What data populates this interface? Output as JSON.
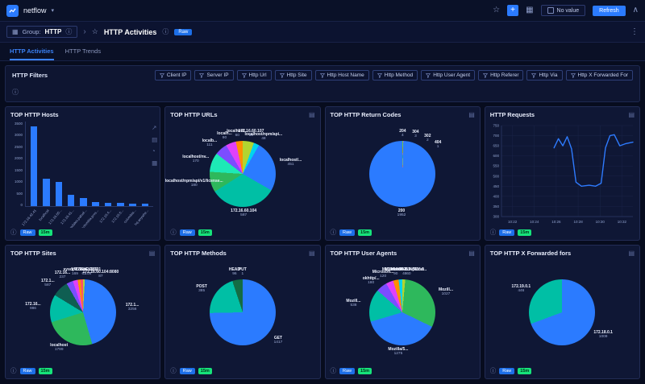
{
  "topbar": {
    "app_name": "netflow",
    "no_value_label": "No value",
    "refresh_label": "Refresh"
  },
  "header": {
    "group_label": "Group:",
    "group_value": "HTTP",
    "title": "HTTP Activities",
    "raw_badge": "Raw"
  },
  "tabs": [
    {
      "label": "HTTP Activities",
      "active": true
    },
    {
      "label": "HTTP Trends",
      "active": false
    }
  ],
  "filters": {
    "title": "HTTP Filters",
    "chips": [
      "Client IP",
      "Server IP",
      "Http Url",
      "Http Site",
      "Http Host Name",
      "Http Method",
      "Http User Agent",
      "Http Referer",
      "Http Via",
      "Http X Forwarded For"
    ]
  },
  "card_footer": {
    "raw": "Raw",
    "window": "15m"
  },
  "icons": {
    "caret_down": "▾",
    "star": "☆",
    "plus": "+",
    "apps": "▦",
    "kebab": "⋮",
    "info": "ⓘ",
    "collapse": "∧",
    "crumb": "›",
    "maximize": "↗",
    "table": "▤",
    "pie": "◔",
    "grid": "▦",
    "menu": "▤"
  },
  "colors": {
    "accent_blue": "#2b7bff",
    "raw_badge": "#1d6fe8",
    "window_badge": "#16e37a"
  },
  "cards": [
    {
      "title": "TOP HTTP Hosts",
      "chart_data": {
        "type": "bar",
        "categories": [
          "172.16.42.41",
          "localhost",
          "172.16.60...",
          "172.16.41...",
          "updates.paloal...",
          "colombia.pros...",
          "172.16.4...",
          "172.16.6...",
          "colombia...",
          "hq.anywhe..."
        ],
        "values": [
          3300,
          1150,
          1000,
          470,
          330,
          170,
          150,
          120,
          100,
          90
        ],
        "ylim": [
          0,
          3500
        ],
        "y_step": 500,
        "bar_color": "#2b7bff"
      }
    },
    {
      "title": "TOP HTTP URLs",
      "chart_data": {
        "type": "pie",
        "slices": [
          {
            "label": "172.16.60.107",
            "value": 99,
            "color": "#b2d430"
          },
          {
            "label": "localhost/npm/api...",
            "value": 48,
            "color": "#00d3ee"
          },
          {
            "label": "localhost/...",
            "value": 451,
            "color": "#2b7bff"
          },
          {
            "label": "172.16.60.104",
            "value": 587,
            "color": "#00bfa5"
          },
          {
            "label": "localhost/npm/api/v1/license...",
            "value": 180,
            "color": "#2eb85c"
          },
          {
            "label": "localhost/nv...",
            "value": 170,
            "color": "#1de9b6"
          },
          {
            "label": "localb...",
            "value": 111,
            "color": "#7c4dff"
          },
          {
            "label": "localh...",
            "value": 90,
            "color": "#e040fb"
          },
          {
            "label": "localhost...",
            "value": 60,
            "color": "#ff8f00"
          }
        ]
      }
    },
    {
      "title": "TOP HTTP Return Codes",
      "chart_data": {
        "type": "pie",
        "slices": [
          {
            "label": "204",
            "value": 4,
            "color": "#2eb85c"
          },
          {
            "label": "304",
            "value": 3,
            "color": "#b2d430"
          },
          {
            "label": "302",
            "value": 2,
            "color": "#ff8f00"
          },
          {
            "label": "404",
            "value": 1,
            "color": "#e040fb"
          },
          {
            "label": "200",
            "value": 1952,
            "color": "#2b7bff"
          }
        ]
      }
    },
    {
      "title": "HTTP Requests",
      "chart_data": {
        "type": "line",
        "x_ticks": [
          "10:22",
          "10:24",
          "10:26",
          "10:28",
          "10:30",
          "10:32"
        ],
        "x_tick_minutes": [
          22,
          24,
          26,
          28,
          30,
          32
        ],
        "x_min": 21,
        "x_max": 33,
        "ylim": [
          300,
          750
        ],
        "y_step": 50,
        "line_color": "#2e7bff",
        "points": [
          [
            25.8,
            640
          ],
          [
            26.2,
            685
          ],
          [
            26.6,
            650
          ],
          [
            27.0,
            695
          ],
          [
            27.4,
            635
          ],
          [
            27.8,
            470
          ],
          [
            28.3,
            450
          ],
          [
            29.0,
            455
          ],
          [
            29.6,
            450
          ],
          [
            30.1,
            465
          ],
          [
            30.5,
            640
          ],
          [
            30.9,
            700
          ],
          [
            31.3,
            705
          ],
          [
            31.8,
            650
          ],
          [
            32.3,
            660
          ],
          [
            33.0,
            668
          ]
        ]
      }
    },
    {
      "title": "TOP HTTP Sites",
      "chart_data": {
        "type": "pie",
        "slices": [
          {
            "label": "172.16.42.185",
            "value": 62,
            "color": "#b2d430"
          },
          {
            "label": "172.1...",
            "value": 3256,
            "color": "#2b7bff"
          },
          {
            "label": "localhost",
            "value": 1799,
            "color": "#2eb85c"
          },
          {
            "label": "172.16...",
            "value": 986,
            "color": "#00bfa5"
          },
          {
            "label": "172.1...",
            "value": 587,
            "color": "#0f5e52"
          },
          {
            "label": "172.16...",
            "value": 237,
            "color": "#7c4dff"
          },
          {
            "label": "sysope.com",
            "value": 169,
            "color": "#e040fb"
          },
          {
            "label": "172.16.41.191",
            "value": 108,
            "color": "#ff8f00"
          },
          {
            "label": "172.16.60.104:8080",
            "value": 87,
            "color": "#ff4d6b"
          }
        ]
      }
    },
    {
      "title": "TOP HTTP Methods",
      "chart_data": {
        "type": "pie",
        "slices": [
          {
            "label": "PUT",
            "value": 1,
            "color": "#e040fb"
          },
          {
            "label": "GET",
            "value": 1417,
            "color": "#2b7bff"
          },
          {
            "label": "POST",
            "value": 385,
            "color": "#00bfa5"
          },
          {
            "label": "HEAD",
            "value": 96,
            "color": "#146c43"
          }
        ]
      }
    },
    {
      "title": "TOP HTTP User Agents",
      "chart_data": {
        "type": "pie",
        "slices": [
          {
            "label": "Microsoft-WINS/10.0",
            "value": 48,
            "color": "#b2d430"
          },
          {
            "label": "Mozill...",
            "value": 1027,
            "color": "#2eb85c"
          },
          {
            "label": "Mozilla/5...",
            "value": 1275,
            "color": "#2b7bff"
          },
          {
            "label": "Mozill...",
            "value": 538,
            "color": "#00bfa5"
          },
          {
            "label": "okhttp/...",
            "value": 180,
            "color": "#7c4dff"
          },
          {
            "label": "Microsoft...",
            "value": 120,
            "color": "#e040fb"
          },
          {
            "label": "MICROSOFT...",
            "value": 90,
            "color": "#ff8f00"
          },
          {
            "label": "Mozilla/5.0 (Wind...",
            "value": 60,
            "color": "#00d3ee"
          }
        ]
      }
    },
    {
      "title": "TOP HTTP X Forwarded fors",
      "chart_data": {
        "type": "pie",
        "slices": [
          {
            "label": "172.18.0.1",
            "value": 1009,
            "color": "#2b7bff"
          },
          {
            "label": "172.19.0.1",
            "value": 446,
            "color": "#00bfa5"
          }
        ]
      }
    }
  ]
}
